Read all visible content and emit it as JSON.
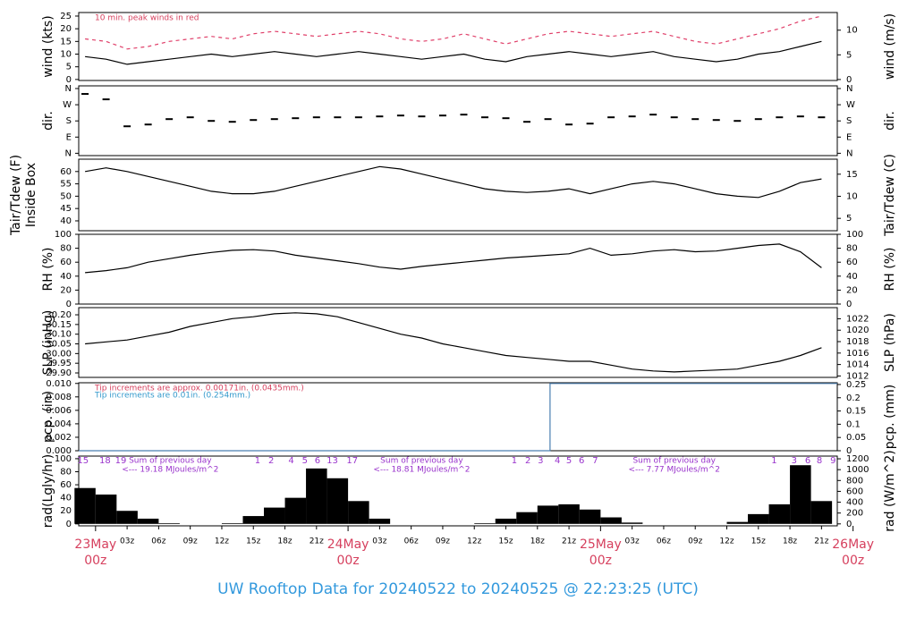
{
  "page_title": "UW Rooftop Data for 20240522  to  20240525 @ 22:23:25  (UTC)",
  "chart_data": [
    {
      "type": "line",
      "ylabel": "wind (kts)",
      "y2label": "wind (m/s)",
      "annotation": "10 min. peak winds in red",
      "annotation_color": "#d6405e",
      "x": [
        -1,
        1,
        3,
        5,
        7,
        9,
        11,
        13,
        15,
        17,
        19,
        21,
        23,
        25,
        27,
        29,
        31,
        33,
        35,
        37,
        39,
        41,
        43,
        45,
        47,
        49,
        51,
        53,
        55,
        57,
        59,
        61,
        63,
        65,
        67,
        69
      ],
      "xlim": [
        -1.6,
        70.5
      ],
      "ylim": [
        -0.4,
        26.4
      ],
      "yticks": [
        0,
        5,
        10,
        15,
        20,
        25
      ],
      "y2lim": [
        -0.2,
        13.58
      ],
      "y2ticks": [
        0,
        5,
        10
      ],
      "series": [
        {
          "color": "#000000",
          "values": [
            9,
            8,
            6,
            7,
            8,
            9,
            10,
            9,
            10,
            11,
            10,
            9,
            10,
            11,
            10,
            9,
            8,
            9,
            10,
            8,
            7,
            9,
            10,
            11,
            10,
            9,
            10,
            11,
            9,
            8,
            7,
            8,
            10,
            11,
            13,
            15
          ]
        },
        {
          "color": "#e0406a",
          "dash": true,
          "values": [
            16,
            15,
            12,
            13,
            15,
            16,
            17,
            16,
            18,
            19,
            18,
            17,
            18,
            19,
            18,
            16,
            15,
            16,
            18,
            16,
            14,
            16,
            18,
            19,
            18,
            17,
            18,
            19,
            17,
            15,
            14,
            16,
            18,
            20,
            23,
            25
          ]
        }
      ]
    },
    {
      "type": "scatter",
      "ylabel": "dir.",
      "y2label": "dir.",
      "x": [
        -1,
        1,
        3,
        5,
        7,
        9,
        11,
        13,
        15,
        17,
        19,
        21,
        23,
        25,
        27,
        29,
        31,
        33,
        35,
        37,
        39,
        41,
        43,
        45,
        47,
        49,
        51,
        53,
        55,
        57,
        59,
        61,
        63,
        65,
        67,
        69
      ],
      "xlim": [
        -1.6,
        70.5
      ],
      "ylim": [
        -13,
        375
      ],
      "yticks": [
        {
          "value": 0,
          "label": "N"
        },
        {
          "value": 90,
          "label": "E"
        },
        {
          "value": 180,
          "label": "S"
        },
        {
          "value": 270,
          "label": "W"
        },
        {
          "value": 360,
          "label": "N"
        }
      ],
      "y2lim": [
        -13,
        375
      ],
      "y2ticks": [
        {
          "value": 0,
          "label": "N"
        },
        {
          "value": 90,
          "label": "E"
        },
        {
          "value": 180,
          "label": "S"
        },
        {
          "value": 270,
          "label": "W"
        },
        {
          "value": 360,
          "label": "N"
        }
      ],
      "color": "#000000",
      "values": [
        330,
        300,
        150,
        160,
        190,
        200,
        180,
        175,
        185,
        190,
        195,
        200,
        200,
        200,
        205,
        210,
        205,
        210,
        215,
        200,
        195,
        175,
        190,
        160,
        165,
        200,
        205,
        215,
        200,
        190,
        185,
        180,
        190,
        200,
        205,
        200
      ]
    },
    {
      "type": "line",
      "ylabel": [
        "Tair/Tdew (F)",
        "Inside Box"
      ],
      "y2label": "Tair/Tdew (C)",
      "x": [
        -1,
        1,
        3,
        5,
        7,
        9,
        11,
        13,
        15,
        17,
        19,
        21,
        23,
        25,
        27,
        29,
        31,
        33,
        35,
        37,
        39,
        41,
        43,
        45,
        47,
        49,
        51,
        53,
        55,
        57,
        59,
        61,
        63,
        65,
        67,
        69
      ],
      "xlim": [
        -1.6,
        70.5
      ],
      "ylim": [
        36,
        65
      ],
      "yticks": [
        40,
        45,
        50,
        55,
        60
      ],
      "y2lim": [
        2.2,
        18.4
      ],
      "y2ticks": [
        5,
        10,
        15
      ],
      "series": [
        {
          "color": "#000000",
          "values": [
            60,
            61.5,
            60,
            58,
            56,
            54,
            52,
            51,
            51,
            52,
            54,
            56,
            58,
            60,
            62,
            61,
            59,
            57,
            55,
            53,
            52,
            51.5,
            52,
            53,
            51,
            53,
            55,
            56,
            55,
            53,
            51,
            50,
            49.5,
            52,
            55.5,
            57
          ]
        }
      ]
    },
    {
      "type": "line",
      "ylabel": "RH (%)",
      "y2label": "RH (%)",
      "x": [
        -1,
        1,
        3,
        5,
        7,
        9,
        11,
        13,
        15,
        17,
        19,
        21,
        23,
        25,
        27,
        29,
        31,
        33,
        35,
        37,
        39,
        41,
        43,
        45,
        47,
        49,
        51,
        53,
        55,
        57,
        59,
        61,
        63,
        65,
        67,
        69
      ],
      "xlim": [
        -1.6,
        70.5
      ],
      "ylim": [
        0,
        100
      ],
      "yticks": [
        0,
        20,
        40,
        60,
        80,
        100
      ],
      "y2lim": [
        0,
        100
      ],
      "y2ticks": [
        0,
        20,
        40,
        60,
        80,
        100
      ],
      "series": [
        {
          "color": "#000000",
          "values": [
            45,
            48,
            52,
            60,
            65,
            70,
            74,
            77,
            78,
            76,
            70,
            66,
            62,
            58,
            53,
            50,
            54,
            57,
            60,
            63,
            66,
            68,
            70,
            72,
            80,
            70,
            72,
            76,
            78,
            75,
            76,
            80,
            84,
            86,
            75,
            52
          ]
        }
      ]
    },
    {
      "type": "line",
      "ylabel": "SLP (inHg)",
      "y2label": "SLP (hPa)",
      "x": [
        -1,
        1,
        3,
        5,
        7,
        9,
        11,
        13,
        15,
        17,
        19,
        21,
        23,
        25,
        27,
        29,
        31,
        33,
        35,
        37,
        39,
        41,
        43,
        45,
        47,
        49,
        51,
        53,
        55,
        57,
        59,
        61,
        63,
        65,
        67,
        69
      ],
      "xlim": [
        -1.6,
        70.5
      ],
      "ylim": [
        29.877,
        30.237
      ],
      "yticks": [
        {
          "value": 29.9,
          "label": "29.90"
        },
        29.95,
        {
          "value": 30.0,
          "label": "30.00"
        },
        30.05,
        {
          "value": 30.1,
          "label": "30.10"
        },
        30.15,
        {
          "value": 30.2,
          "label": "30.20"
        }
      ],
      "y2lim": [
        1011.75,
        1023.94
      ],
      "y2ticks": [
        1012,
        1014,
        1016,
        1018,
        1020,
        1022
      ],
      "series": [
        {
          "color": "#000000",
          "values": [
            30.05,
            30.06,
            30.07,
            30.09,
            30.11,
            30.14,
            30.16,
            30.18,
            30.19,
            30.205,
            30.21,
            30.205,
            30.19,
            30.16,
            30.13,
            30.1,
            30.08,
            30.05,
            30.03,
            30.01,
            29.99,
            29.98,
            29.97,
            29.96,
            29.96,
            29.94,
            29.92,
            29.91,
            29.905,
            29.91,
            29.915,
            29.92,
            29.94,
            29.96,
            29.99,
            30.03
          ]
        }
      ]
    },
    {
      "type": "line",
      "ylabel": "pcp. (in)",
      "y2label": "pcp. (mm)",
      "annotations": [
        {
          "text": "Tip increments are approx. 0.00171in. (0.0435mm.)",
          "color": "#d6405e"
        },
        {
          "text": "Tip increments are 0.01in. (0.254mm.)",
          "color": "#3399cc"
        }
      ],
      "x": [
        -1.6,
        43.2,
        43.2,
        70.5
      ],
      "xlim": [
        -1.6,
        70.5
      ],
      "ylim": [
        0,
        0.0101
      ],
      "yticks": [
        {
          "value": 0,
          "label": "0.000"
        },
        0.002,
        0.004,
        0.006,
        0.008,
        {
          "value": 0.01,
          "label": "0.010"
        }
      ],
      "y2lim": [
        0,
        0.2566
      ],
      "y2ticks": [
        0,
        0.05,
        0.1,
        0.15,
        0.2,
        0.25
      ],
      "series": [
        {
          "color": "#4a7fb0",
          "values": [
            0,
            0,
            0.01,
            0.01
          ]
        }
      ]
    },
    {
      "type": "bar",
      "ylabel": "rad(Lgly/hr)",
      "y2label": "rad (W/m^2)",
      "x": [
        -1,
        1,
        3,
        5,
        7,
        9,
        11,
        13,
        15,
        17,
        19,
        21,
        23,
        25,
        27,
        29,
        31,
        33,
        35,
        37,
        39,
        41,
        43,
        45,
        47,
        49,
        51,
        53,
        55,
        57,
        59,
        61,
        63,
        65,
        67,
        69
      ],
      "xlim": [
        -1.6,
        70.5
      ],
      "ylim": [
        -3,
        104
      ],
      "yticks": [
        0,
        20,
        40,
        60,
        80,
        100
      ],
      "y2lim": [
        -36,
        1250
      ],
      "y2ticks": [
        0,
        200,
        400,
        600,
        800,
        1000,
        1200
      ],
      "color": "#000000",
      "values": [
        55,
        45,
        20,
        8,
        1,
        0,
        0,
        1,
        12,
        25,
        40,
        85,
        70,
        35,
        8,
        0,
        0,
        0,
        0,
        1,
        8,
        18,
        28,
        30,
        22,
        10,
        2,
        0,
        0,
        0,
        0,
        3,
        15,
        30,
        90,
        35
      ],
      "hour_marks": [
        {
          "x": -1.2,
          "label": "15"
        },
        {
          "x": 0.9,
          "label": "18"
        },
        {
          "x": 2.4,
          "label": "19"
        },
        {
          "x": 15.4,
          "label": "1"
        },
        {
          "x": 16.7,
          "label": "2"
        },
        {
          "x": 18.6,
          "label": "4"
        },
        {
          "x": 19.9,
          "label": "5"
        },
        {
          "x": 21.1,
          "label": "6"
        },
        {
          "x": 22.5,
          "label": "13"
        },
        {
          "x": 24.4,
          "label": "17"
        },
        {
          "x": 39.8,
          "label": "1"
        },
        {
          "x": 41.1,
          "label": "2"
        },
        {
          "x": 42.3,
          "label": "3"
        },
        {
          "x": 43.9,
          "label": "4"
        },
        {
          "x": 45.0,
          "label": "5"
        },
        {
          "x": 46.2,
          "label": "6"
        },
        {
          "x": 47.5,
          "label": "7"
        },
        {
          "x": 64.5,
          "label": "1"
        },
        {
          "x": 66.4,
          "label": "3"
        },
        {
          "x": 67.7,
          "label": "6"
        },
        {
          "x": 68.8,
          "label": "8"
        },
        {
          "x": 70.1,
          "label": "9"
        }
      ],
      "daily_sums": [
        {
          "x": 7.1,
          "text": "Sum of previous day",
          "total": "<--- 19.18 MJoules/m^2"
        },
        {
          "x": 31.0,
          "text": "Sum of previous day",
          "total": "<--- 18.81 MJoules/m^2"
        },
        {
          "x": 55.0,
          "text": "Sum of previous day",
          "total": "<--- 7.77 MJoules/m^2"
        }
      ],
      "xticks": [
        {
          "value": 3,
          "label": "03z"
        },
        {
          "value": 6,
          "label": "06z"
        },
        {
          "value": 9,
          "label": "09z"
        },
        {
          "value": 12,
          "label": "12z"
        },
        {
          "value": 15,
          "label": "15z"
        },
        {
          "value": 18,
          "label": "18z"
        },
        {
          "value": 21,
          "label": "21z"
        },
        {
          "value": 27,
          "label": "03z"
        },
        {
          "value": 30,
          "label": "06z"
        },
        {
          "value": 33,
          "label": "09z"
        },
        {
          "value": 36,
          "label": "12z"
        },
        {
          "value": 39,
          "label": "15z"
        },
        {
          "value": 42,
          "label": "18z"
        },
        {
          "value": 45,
          "label": "21z"
        },
        {
          "value": 51,
          "label": "03z"
        },
        {
          "value": 54,
          "label": "06z"
        },
        {
          "value": 57,
          "label": "09z"
        },
        {
          "value": 60,
          "label": "12z"
        },
        {
          "value": 63,
          "label": "15z"
        },
        {
          "value": 66,
          "label": "18z"
        },
        {
          "value": 69,
          "label": "21z"
        }
      ],
      "day_labels": [
        {
          "value": 0,
          "day": "23May",
          "hour": "00z"
        },
        {
          "value": 24,
          "day": "24May",
          "hour": "00z"
        },
        {
          "value": 48,
          "day": "25May",
          "hour": "00z"
        },
        {
          "value": 72,
          "day": "26May",
          "hour": "00z"
        }
      ],
      "day_label_color": "#d6405e",
      "hour_mark_color": "#9933cc"
    }
  ]
}
